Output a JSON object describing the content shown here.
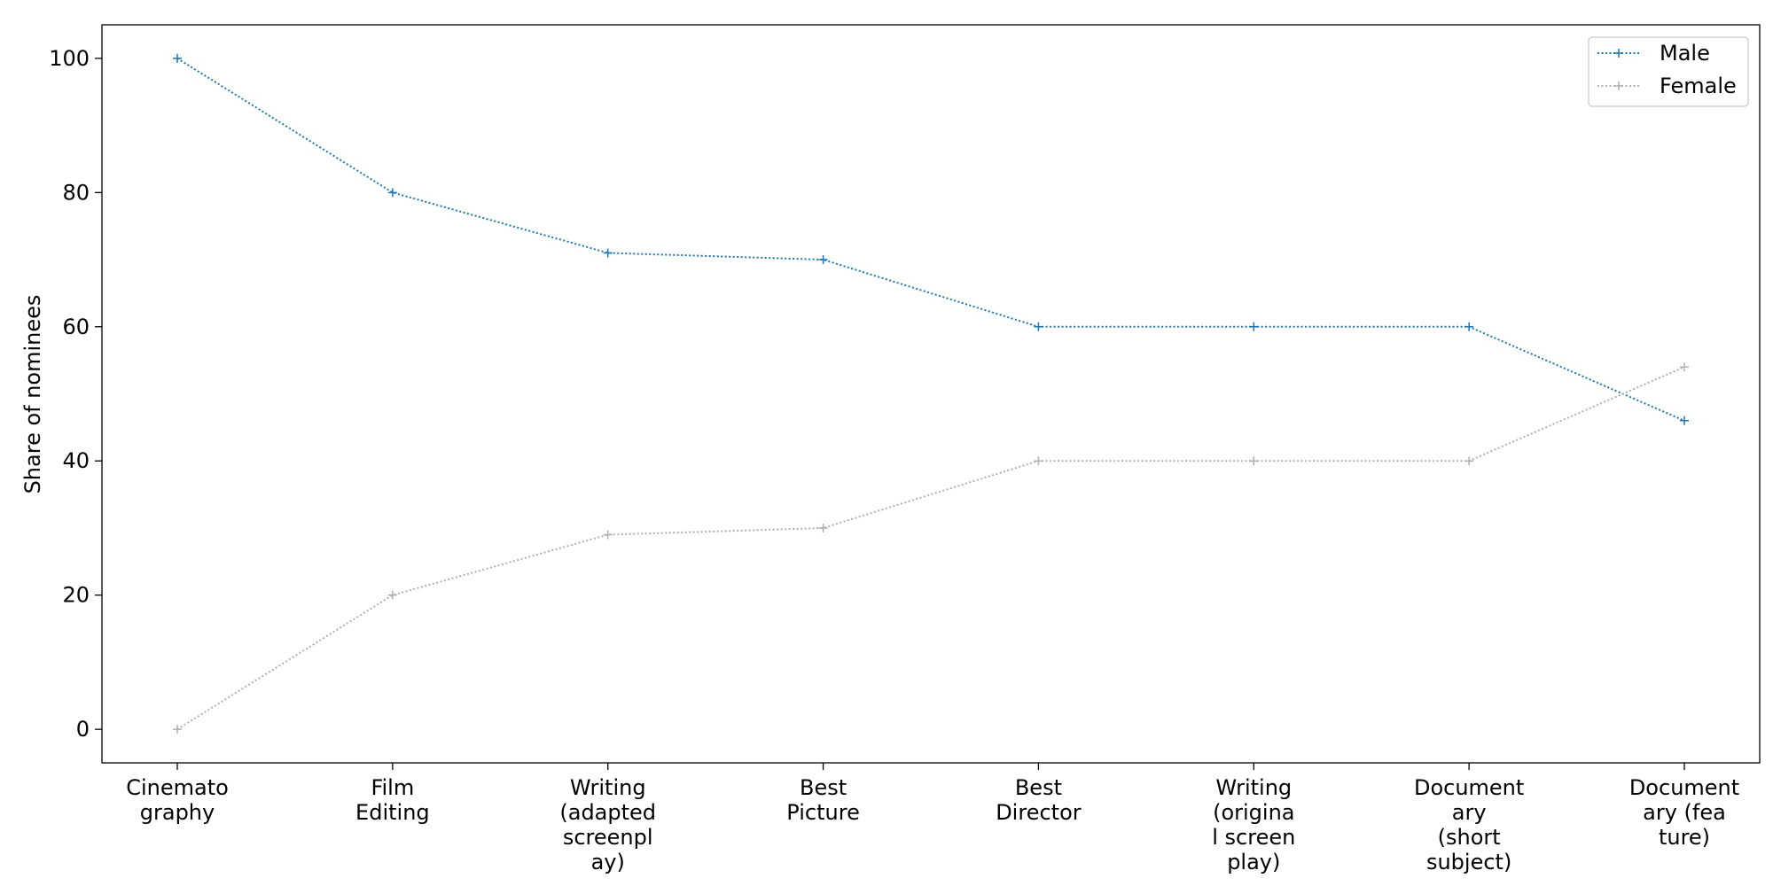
{
  "chart_data": {
    "type": "line",
    "categories": [
      "Cinemato\ngraphy",
      "Film\nEditing",
      "Writing\n(adapted\nscreenpl\nay)",
      "Best\nPicture",
      "Best\nDirector",
      "Writing\n(origina\nl screen\nplay)",
      "Document\nary\n(short\nsubject)",
      "Document\nary (fea\nture)"
    ],
    "series": [
      {
        "name": "Male",
        "color": "#1f77b4",
        "values": [
          100,
          80,
          71,
          70,
          60,
          60,
          60,
          46
        ]
      },
      {
        "name": "Female",
        "color": "#b0b0b0",
        "values": [
          0,
          20,
          29,
          30,
          40,
          40,
          40,
          54
        ]
      }
    ],
    "title": "",
    "xlabel": "",
    "ylabel": "Share of nominees",
    "ylim": [
      -5,
      105
    ],
    "yticks": [
      0,
      20,
      40,
      60,
      80,
      100
    ],
    "grid": false,
    "legend": "top-right",
    "line_style": "dotted",
    "marker": "plus"
  }
}
